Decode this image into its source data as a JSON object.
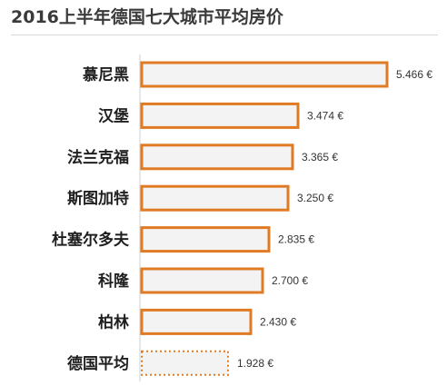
{
  "chart_data": {
    "type": "bar",
    "orientation": "horizontal",
    "title": "2016上半年德国七大城市平均房价",
    "categories": [
      "慕尼黑",
      "汉堡",
      "法兰克福",
      "斯图加特",
      "杜塞尔多夫",
      "科隆",
      "柏林",
      "德国平均"
    ],
    "values": [
      5466,
      3474,
      3365,
      3250,
      2835,
      2700,
      2430,
      1928
    ],
    "value_labels": [
      "5.466 €",
      "3.474 €",
      "3.365 €",
      "3.250 €",
      "2.835 €",
      "2.700 €",
      "2.430 €",
      "1.928 €"
    ],
    "bar_styles": [
      "solid",
      "solid",
      "solid",
      "solid",
      "solid",
      "solid",
      "solid",
      "dotted"
    ],
    "xlim": [
      0,
      5466
    ],
    "grid": false,
    "colors": {
      "bar_fill": "#f3f3f3",
      "bar_border": "#e07b24"
    }
  }
}
